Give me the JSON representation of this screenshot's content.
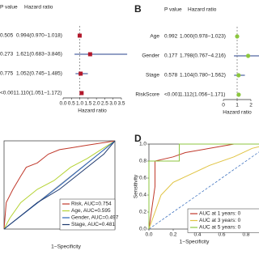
{
  "chart_data": [
    {
      "type": "forest",
      "p_header": "P value",
      "hr_header": "Hazard ratio",
      "p_values": [
        "0.505",
        "0.273",
        "0.775",
        "<0.001"
      ],
      "values": [
        0.994,
        1.621,
        1.052,
        1.11
      ],
      "lower": [
        0.97,
        0.683,
        0.745,
        1.051
      ],
      "upper": [
        1.018,
        3.846,
        1.485,
        1.172
      ],
      "value_labels": [
        "0.994(0.970−1.018)",
        "1.621(0.683−3.846)",
        "1.052(0.745−1.485)",
        "1.110(1.051−1.172)"
      ],
      "xlim": [
        0,
        3.5
      ],
      "xticks": [
        {
          "value": 0,
          "label": "0.0"
        },
        {
          "value": 0.5,
          "label": "0.5"
        },
        {
          "value": 1,
          "label": "1.0"
        },
        {
          "value": 1.5,
          "label": "1.5"
        },
        {
          "value": 2,
          "label": "2.0"
        },
        {
          "value": 2.5,
          "label": "2.5"
        },
        {
          "value": 3,
          "label": "3.0"
        },
        {
          "value": 3.5,
          "label": "3.5"
        }
      ],
      "xlabel": "Hazard ratio",
      "color": "#b2182b",
      "line_color": "#27408b"
    },
    {
      "type": "forest",
      "panel": "B",
      "p_header": "P value",
      "hr_header": "Hazard ratio",
      "categories": [
        "Age",
        "Gender",
        "Stage",
        "RiskScore"
      ],
      "p_values": [
        "0.992",
        "0.177",
        "0.578",
        "<0.001"
      ],
      "values": [
        1.0,
        1.798,
        1.104,
        1.112
      ],
      "lower": [
        0.978,
        0.767,
        0.78,
        1.056
      ],
      "upper": [
        1.023,
        4.216,
        1.562,
        1.171
      ],
      "value_labels": [
        "1.000(0.978−1.023)",
        "1.798(0.767−4.216)",
        "1.104(0.780−1.562)",
        "1.112(1.056−1.171)"
      ],
      "xlim": [
        0,
        2
      ],
      "xticks": [
        0,
        1,
        2
      ],
      "xlabel": "Hazard ratio",
      "color": "#8cc63f",
      "line_color": "#27408b"
    },
    {
      "type": "roc",
      "xlabel": "1−Specificity",
      "xlim": [
        0,
        1
      ],
      "ylim": [
        0,
        1
      ],
      "legend": "lower right",
      "series": [
        {
          "name": "Risk, AUC=0.754",
          "color": "#c0392b",
          "x": [
            0,
            0.02,
            0.08,
            0.15,
            0.2,
            0.3,
            0.4,
            0.5,
            0.6,
            0.75,
            0.9,
            1
          ],
          "values": [
            0,
            0.3,
            0.45,
            0.6,
            0.7,
            0.75,
            0.85,
            0.9,
            0.92,
            0.95,
            0.98,
            1
          ]
        },
        {
          "name": "Age, AUC=0.595",
          "color": "#b5d334",
          "x": [
            0,
            0.05,
            0.15,
            0.3,
            0.45,
            0.6,
            0.75,
            0.9,
            1
          ],
          "values": [
            0,
            0.12,
            0.3,
            0.45,
            0.55,
            0.7,
            0.8,
            0.92,
            1
          ]
        },
        {
          "name": "Gender, AUC=0.497",
          "color": "#2a63b8",
          "x": [
            0,
            0.5,
            1
          ],
          "values": [
            0,
            0.49,
            1
          ]
        },
        {
          "name": "Stage, AUC=0.481",
          "color": "#1f3a6e",
          "x": [
            0,
            0.1,
            0.3,
            0.5,
            0.7,
            0.9,
            1
          ],
          "values": [
            0,
            0.1,
            0.3,
            0.45,
            0.65,
            0.85,
            1
          ]
        }
      ]
    },
    {
      "type": "roc",
      "panel": "D",
      "xlabel": "1−Specificity",
      "ylabel": "Sensitivity",
      "xlim": [
        0,
        1
      ],
      "ylim": [
        0,
        1
      ],
      "legend": "lower right",
      "xticks": [
        {
          "value": 0,
          "label": "0.0"
        },
        {
          "value": 0.2,
          "label": "0.2"
        },
        {
          "value": 0.4,
          "label": "0.4"
        },
        {
          "value": 0.6,
          "label": "0.6"
        },
        {
          "value": 0.8,
          "label": "0.8"
        },
        {
          "value": 1,
          "label": "1.0"
        }
      ],
      "yticks": [
        {
          "value": 0,
          "label": "0.0"
        },
        {
          "value": 0.2,
          "label": "0.2"
        },
        {
          "value": 0.4,
          "label": "0.4"
        },
        {
          "value": 0.6,
          "label": "0.6"
        },
        {
          "value": 0.8,
          "label": "0.8"
        },
        {
          "value": 1,
          "label": "1.0"
        }
      ],
      "series": [
        {
          "name": "AUC at 1 years: 0",
          "color": "#c0392b",
          "x": [
            0,
            0.05,
            0.05,
            0.2,
            0.3,
            0.5,
            0.7,
            1
          ],
          "values": [
            0,
            0.5,
            0.8,
            0.85,
            0.9,
            0.95,
            1,
            1
          ]
        },
        {
          "name": "AUC at 3 years: 0",
          "color": "#e0c341",
          "x": [
            0,
            0.1,
            0.2,
            0.35,
            0.5,
            0.7,
            0.85,
            1
          ],
          "values": [
            0,
            0.4,
            0.55,
            0.65,
            0.75,
            0.85,
            0.95,
            1
          ]
        },
        {
          "name": "AUC at 5 years: 0",
          "color": "#8cc63f",
          "x": [
            0,
            0,
            0.25,
            0.25,
            1
          ],
          "values": [
            0,
            0.8,
            0.8,
            1,
            1
          ]
        }
      ]
    }
  ]
}
